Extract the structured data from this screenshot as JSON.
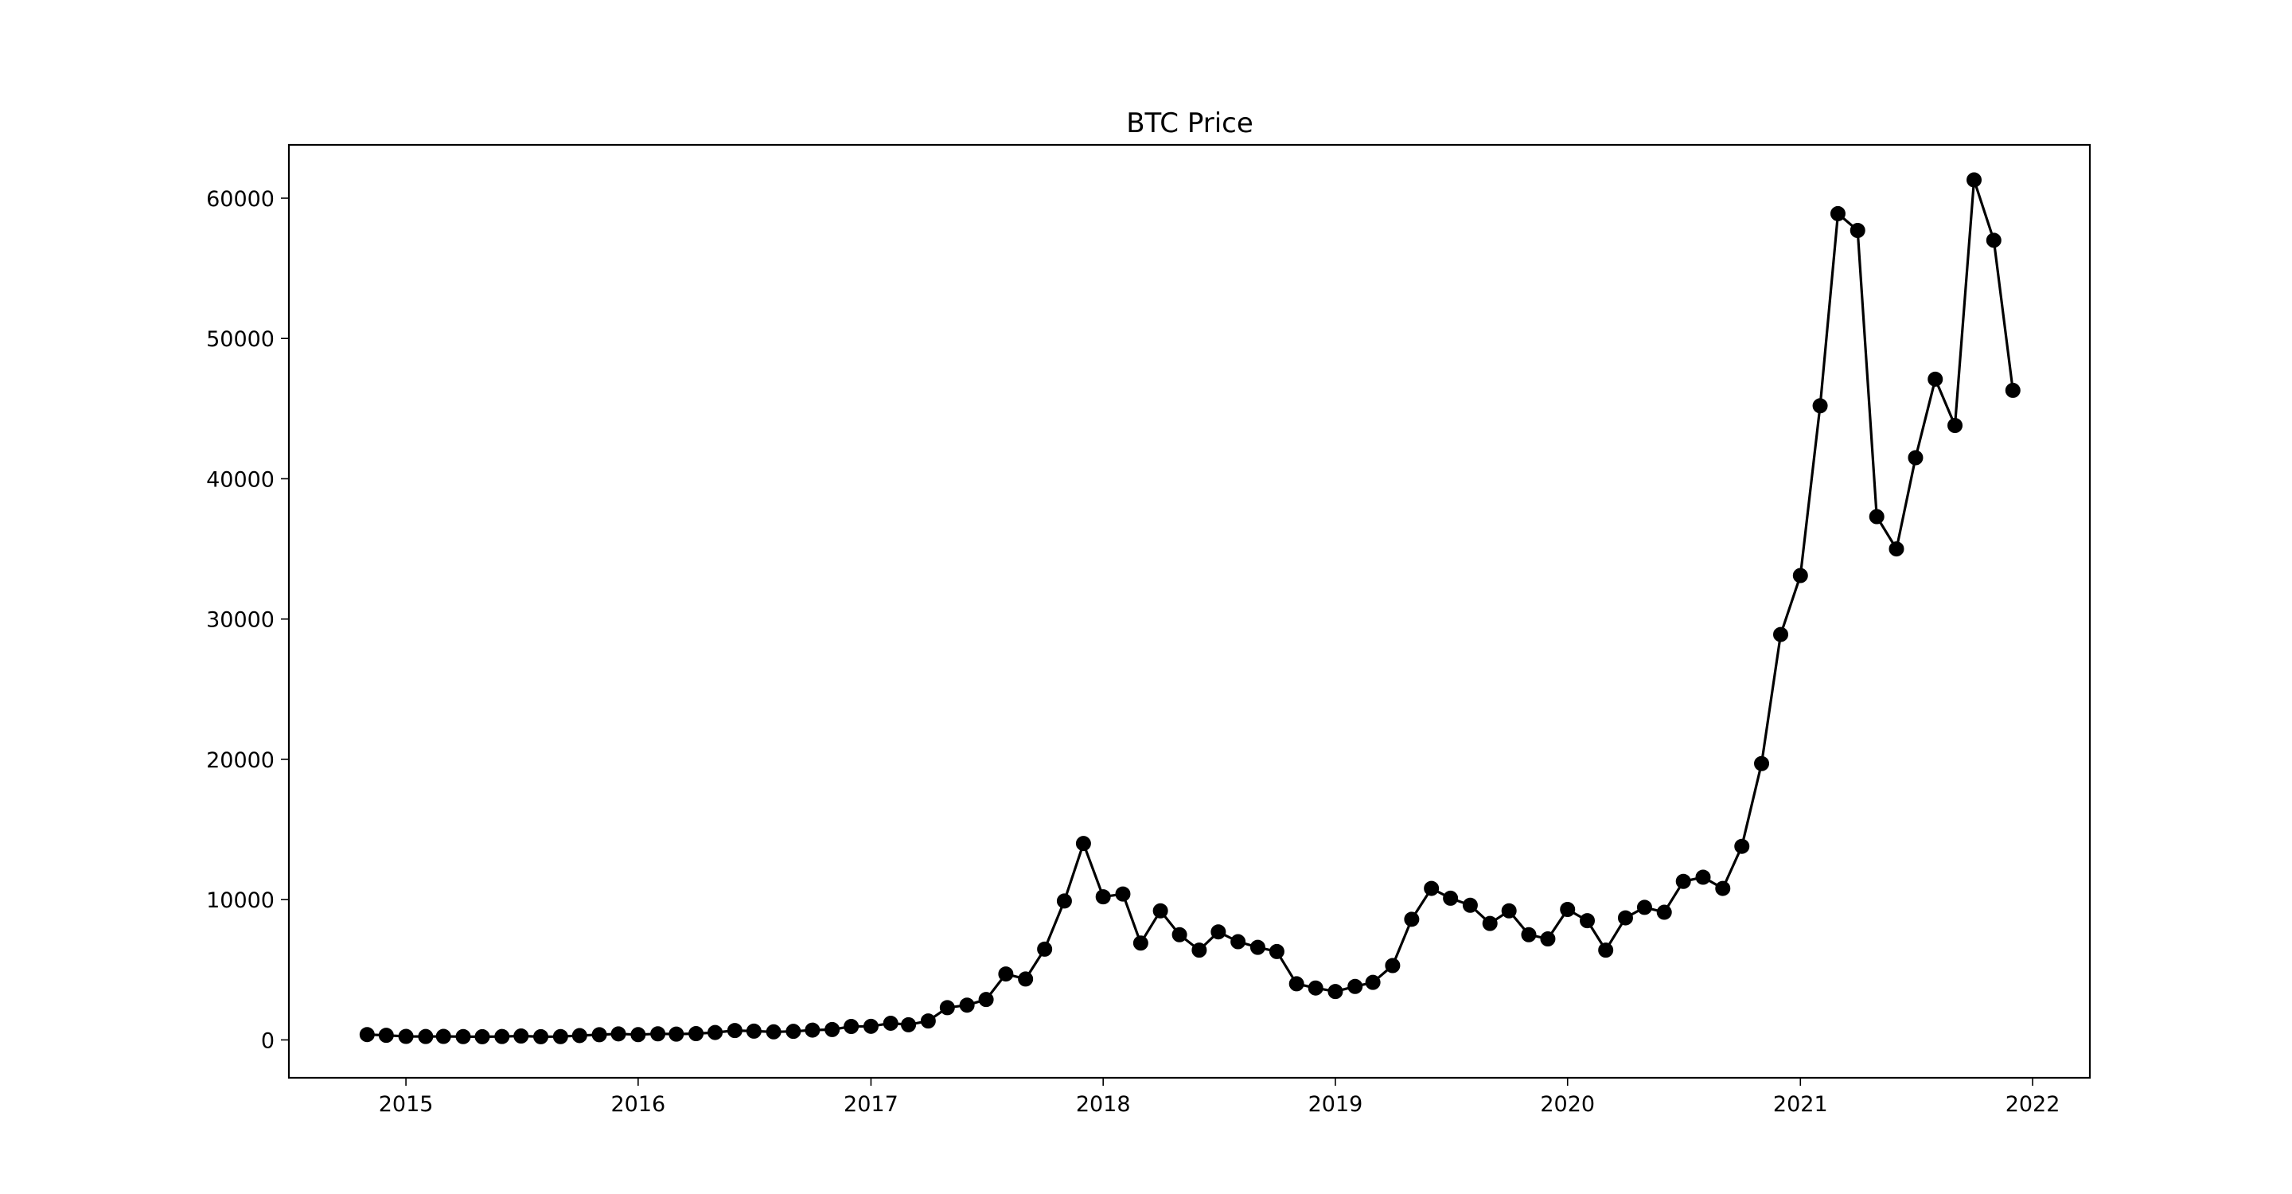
{
  "chart_data": {
    "type": "line",
    "title": "BTC Price",
    "xlabel": "",
    "ylabel": "",
    "x_ticks": [
      "2015",
      "2016",
      "2017",
      "2018",
      "2019",
      "2020",
      "2021",
      "2022"
    ],
    "y_ticks": [
      "0",
      "10000",
      "20000",
      "30000",
      "40000",
      "50000",
      "60000"
    ],
    "xlim": [
      "2014-07-01",
      "2022-04-01"
    ],
    "ylim": [
      -2700,
      63800
    ],
    "grid": false,
    "legend": false,
    "marker": "circle",
    "colors": {
      "series": "#000000",
      "background": "#ffffff"
    },
    "series": [
      {
        "x": [
          "2014-11-01",
          "2014-12-01",
          "2015-01-01",
          "2015-02-01",
          "2015-03-01",
          "2015-04-01",
          "2015-05-01",
          "2015-06-01",
          "2015-07-01",
          "2015-08-01",
          "2015-09-01",
          "2015-10-01",
          "2015-11-01",
          "2015-12-01",
          "2016-01-01",
          "2016-02-01",
          "2016-03-01",
          "2016-04-01",
          "2016-05-01",
          "2016-06-01",
          "2016-07-01",
          "2016-08-01",
          "2016-09-01",
          "2016-10-01",
          "2016-11-01",
          "2016-12-01",
          "2017-01-01",
          "2017-02-01",
          "2017-03-01",
          "2017-04-01",
          "2017-05-01",
          "2017-06-01",
          "2017-07-01",
          "2017-08-01",
          "2017-09-01",
          "2017-10-01",
          "2017-11-01",
          "2017-12-01",
          "2018-01-01",
          "2018-02-01",
          "2018-03-01",
          "2018-04-01",
          "2018-05-01",
          "2018-06-01",
          "2018-07-01",
          "2018-08-01",
          "2018-09-01",
          "2018-10-01",
          "2018-11-01",
          "2018-12-01",
          "2019-01-01",
          "2019-02-01",
          "2019-03-01",
          "2019-04-01",
          "2019-05-01",
          "2019-06-01",
          "2019-07-01",
          "2019-08-01",
          "2019-09-01",
          "2019-10-01",
          "2019-11-01",
          "2019-12-01",
          "2020-01-01",
          "2020-02-01",
          "2020-03-01",
          "2020-04-01",
          "2020-05-01",
          "2020-06-01",
          "2020-07-01",
          "2020-08-01",
          "2020-09-01",
          "2020-10-01",
          "2020-11-01",
          "2020-12-01",
          "2021-01-01",
          "2021-02-01",
          "2021-03-01",
          "2021-04-01",
          "2021-05-01",
          "2021-06-01",
          "2021-07-01",
          "2021-08-01",
          "2021-09-01",
          "2021-10-01",
          "2021-11-01",
          "2021-12-01"
        ],
        "y": [
          380,
          330,
          250,
          240,
          250,
          235,
          230,
          240,
          280,
          230,
          238,
          310,
          370,
          430,
          375,
          435,
          415,
          450,
          530,
          670,
          625,
          575,
          610,
          700,
          740,
          960,
          970,
          1190,
          1080,
          1350,
          2300,
          2480,
          2880,
          4700,
          4340,
          6470,
          9900,
          14000,
          10200,
          10400,
          6900,
          9200,
          7500,
          6400,
          7700,
          7000,
          6600,
          6300,
          4000,
          3700,
          3450,
          3810,
          4100,
          5300,
          8600,
          10800,
          10100,
          9600,
          8300,
          9200,
          7500,
          7200,
          9300,
          8500,
          6400,
          8700,
          9450,
          9100,
          11300,
          11600,
          10800,
          13800,
          19700,
          28900,
          33100,
          45200,
          58900,
          57700,
          37300,
          35000,
          41500,
          47100,
          43800,
          61300,
          57000,
          46300
        ]
      }
    ]
  }
}
